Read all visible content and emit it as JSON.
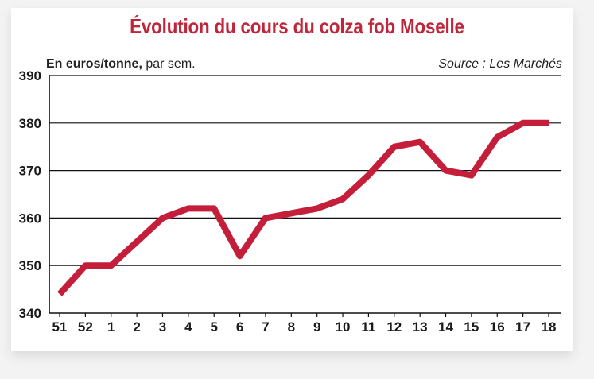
{
  "header": {
    "title": "Évolution du cours du colza fob Moselle",
    "unit_bold": "En euros/tonne,",
    "unit_rest": " par sem.",
    "source": "Source : Les Marchés"
  },
  "colors": {
    "title": "#c0263a",
    "line": "#c41e3a",
    "grid": "#111111"
  },
  "chart_data": {
    "type": "line",
    "title": "Évolution du cours du colza fob Moselle",
    "ylabel": "En euros/tonne, par sem.",
    "xlabel": "",
    "categories": [
      "51",
      "52",
      "1",
      "2",
      "3",
      "4",
      "5",
      "6",
      "7",
      "8",
      "9",
      "10",
      "11",
      "12",
      "13",
      "14",
      "15",
      "16",
      "17",
      "18"
    ],
    "series": [
      {
        "values": [
          344,
          350,
          350,
          355,
          360,
          362,
          362,
          352,
          360,
          361,
          362,
          364,
          369,
          375,
          376,
          370,
          369,
          377,
          380,
          380
        ]
      }
    ],
    "ylim": [
      340,
      390
    ],
    "yticks": [
      340,
      350,
      360,
      370,
      380,
      390
    ],
    "grid": true,
    "legend": "none"
  }
}
